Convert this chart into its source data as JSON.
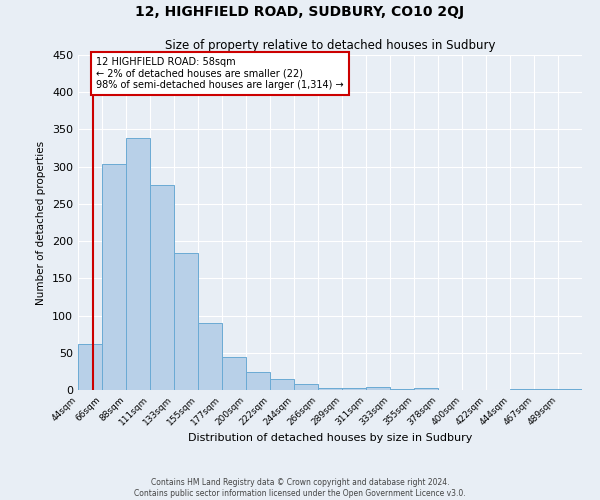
{
  "title": "12, HIGHFIELD ROAD, SUDBURY, CO10 2QJ",
  "subtitle": "Size of property relative to detached houses in Sudbury",
  "xlabel": "Distribution of detached houses by size in Sudbury",
  "ylabel": "Number of detached properties",
  "bar_labels": [
    "44sqm",
    "66sqm",
    "88sqm",
    "111sqm",
    "133sqm",
    "155sqm",
    "177sqm",
    "200sqm",
    "222sqm",
    "244sqm",
    "266sqm",
    "289sqm",
    "311sqm",
    "333sqm",
    "355sqm",
    "378sqm",
    "400sqm",
    "422sqm",
    "444sqm",
    "467sqm",
    "489sqm"
  ],
  "bar_values": [
    62,
    303,
    338,
    275,
    184,
    90,
    45,
    24,
    15,
    8,
    3,
    3,
    4,
    1,
    3,
    0,
    0,
    0,
    2,
    2,
    1
  ],
  "bar_color": "#b8d0e8",
  "bar_edge_color": "#6aaad4",
  "ylim": [
    0,
    450
  ],
  "yticks": [
    0,
    50,
    100,
    150,
    200,
    250,
    300,
    350,
    400,
    450
  ],
  "property_line_color": "#cc0000",
  "annotation_text": "12 HIGHFIELD ROAD: 58sqm\n← 2% of detached houses are smaller (22)\n98% of semi-detached houses are larger (1,314) →",
  "annotation_box_color": "#cc0000",
  "footer_line1": "Contains HM Land Registry data © Crown copyright and database right 2024.",
  "footer_line2": "Contains public sector information licensed under the Open Government Licence v3.0.",
  "background_color": "#e8eef5",
  "grid_color": "#ffffff"
}
